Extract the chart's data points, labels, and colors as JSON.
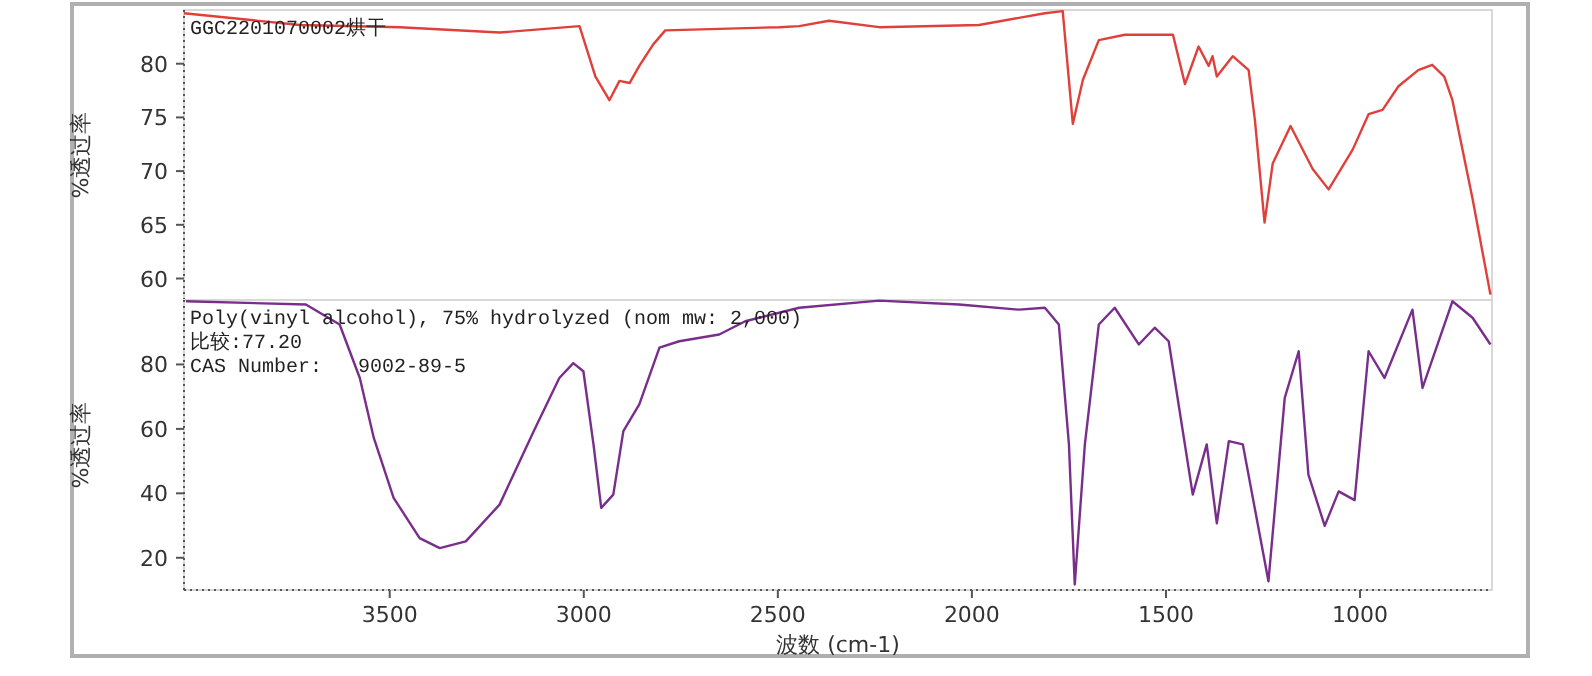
{
  "chart_data": [
    {
      "type": "line",
      "title": "GGC2201070002烘干",
      "ylabel": "%透过率",
      "color": "#e0403a",
      "tick_labels": "y",
      "xlim": [
        4030,
        660
      ],
      "ylim": [
        58,
        85
      ],
      "yticks": [
        60,
        65,
        70,
        75,
        80
      ],
      "x": [
        4030,
        3732,
        3474,
        3217,
        3011,
        2970,
        2934,
        2908,
        2882,
        2857,
        2821,
        2790,
        2496,
        2445,
        2368,
        2239,
        1982,
        1812,
        1766,
        1740,
        1714,
        1673,
        1606,
        1482,
        1451,
        1416,
        1390,
        1380,
        1369,
        1328,
        1287,
        1271,
        1246,
        1225,
        1179,
        1122,
        1081,
        1019,
        978,
        942,
        901,
        850,
        814,
        783,
        762,
        710,
        664
      ],
      "values": [
        84.7,
        83.6,
        83.4,
        82.9,
        83.5,
        78.8,
        76.6,
        78.4,
        78.2,
        79.8,
        81.8,
        83.1,
        83.4,
        83.5,
        84.0,
        83.4,
        83.6,
        84.7,
        84.9,
        74.4,
        78.5,
        82.2,
        82.7,
        82.7,
        78.1,
        81.6,
        79.8,
        80.7,
        78.8,
        80.7,
        79.4,
        74.8,
        65.2,
        70.7,
        74.2,
        70.2,
        68.3,
        72.0,
        75.3,
        75.7,
        77.9,
        79.4,
        79.9,
        78.8,
        76.6,
        67.4,
        58.5
      ]
    },
    {
      "type": "line",
      "title": "Poly(vinyl alcohol), 75% hydrolyzed (nom mw: 2,000)",
      "ylabel": "%透过率",
      "xlabel": "波数 (cm-1)",
      "color": "#7a2e8c",
      "annotations": [
        "比较:77.20",
        "CAS Number:   9002-89-5"
      ],
      "xlim": [
        4030,
        660
      ],
      "ylim": [
        10,
        100
      ],
      "yticks": [
        20,
        40,
        60,
        80
      ],
      "xticks": [
        3500,
        3000,
        2500,
        2000,
        1500,
        1000
      ],
      "x": [
        4025,
        3716,
        3629,
        3577,
        3541,
        3490,
        3423,
        3371,
        3304,
        3217,
        3129,
        3063,
        3027,
        3001,
        2975,
        2955,
        2924,
        2898,
        2857,
        2805,
        2754,
        2651,
        2584,
        2445,
        2239,
        2033,
        1879,
        1812,
        1776,
        1750,
        1735,
        1709,
        1673,
        1632,
        1570,
        1529,
        1493,
        1431,
        1395,
        1369,
        1338,
        1302,
        1236,
        1194,
        1158,
        1133,
        1091,
        1055,
        1014,
        978,
        937,
        865,
        839,
        762,
        710,
        664
      ],
      "values": [
        99.6,
        98.6,
        92.4,
        75.8,
        57.2,
        38.6,
        26.1,
        23.0,
        25.1,
        36.5,
        59.3,
        75.8,
        80.4,
        77.9,
        55.2,
        35.5,
        39.6,
        59.3,
        67.6,
        85.2,
        87.2,
        89.3,
        93.4,
        97.6,
        99.8,
        98.6,
        97.0,
        97.6,
        92.4,
        55.2,
        11.7,
        55.2,
        92.4,
        97.6,
        86.2,
        91.4,
        87.2,
        39.6,
        55.2,
        30.7,
        56.2,
        55.2,
        12.7,
        69.6,
        84.1,
        45.8,
        29.9,
        40.6,
        37.9,
        84.1,
        75.8,
        97.0,
        72.7,
        99.6,
        94.5,
        86.2
      ]
    }
  ]
}
